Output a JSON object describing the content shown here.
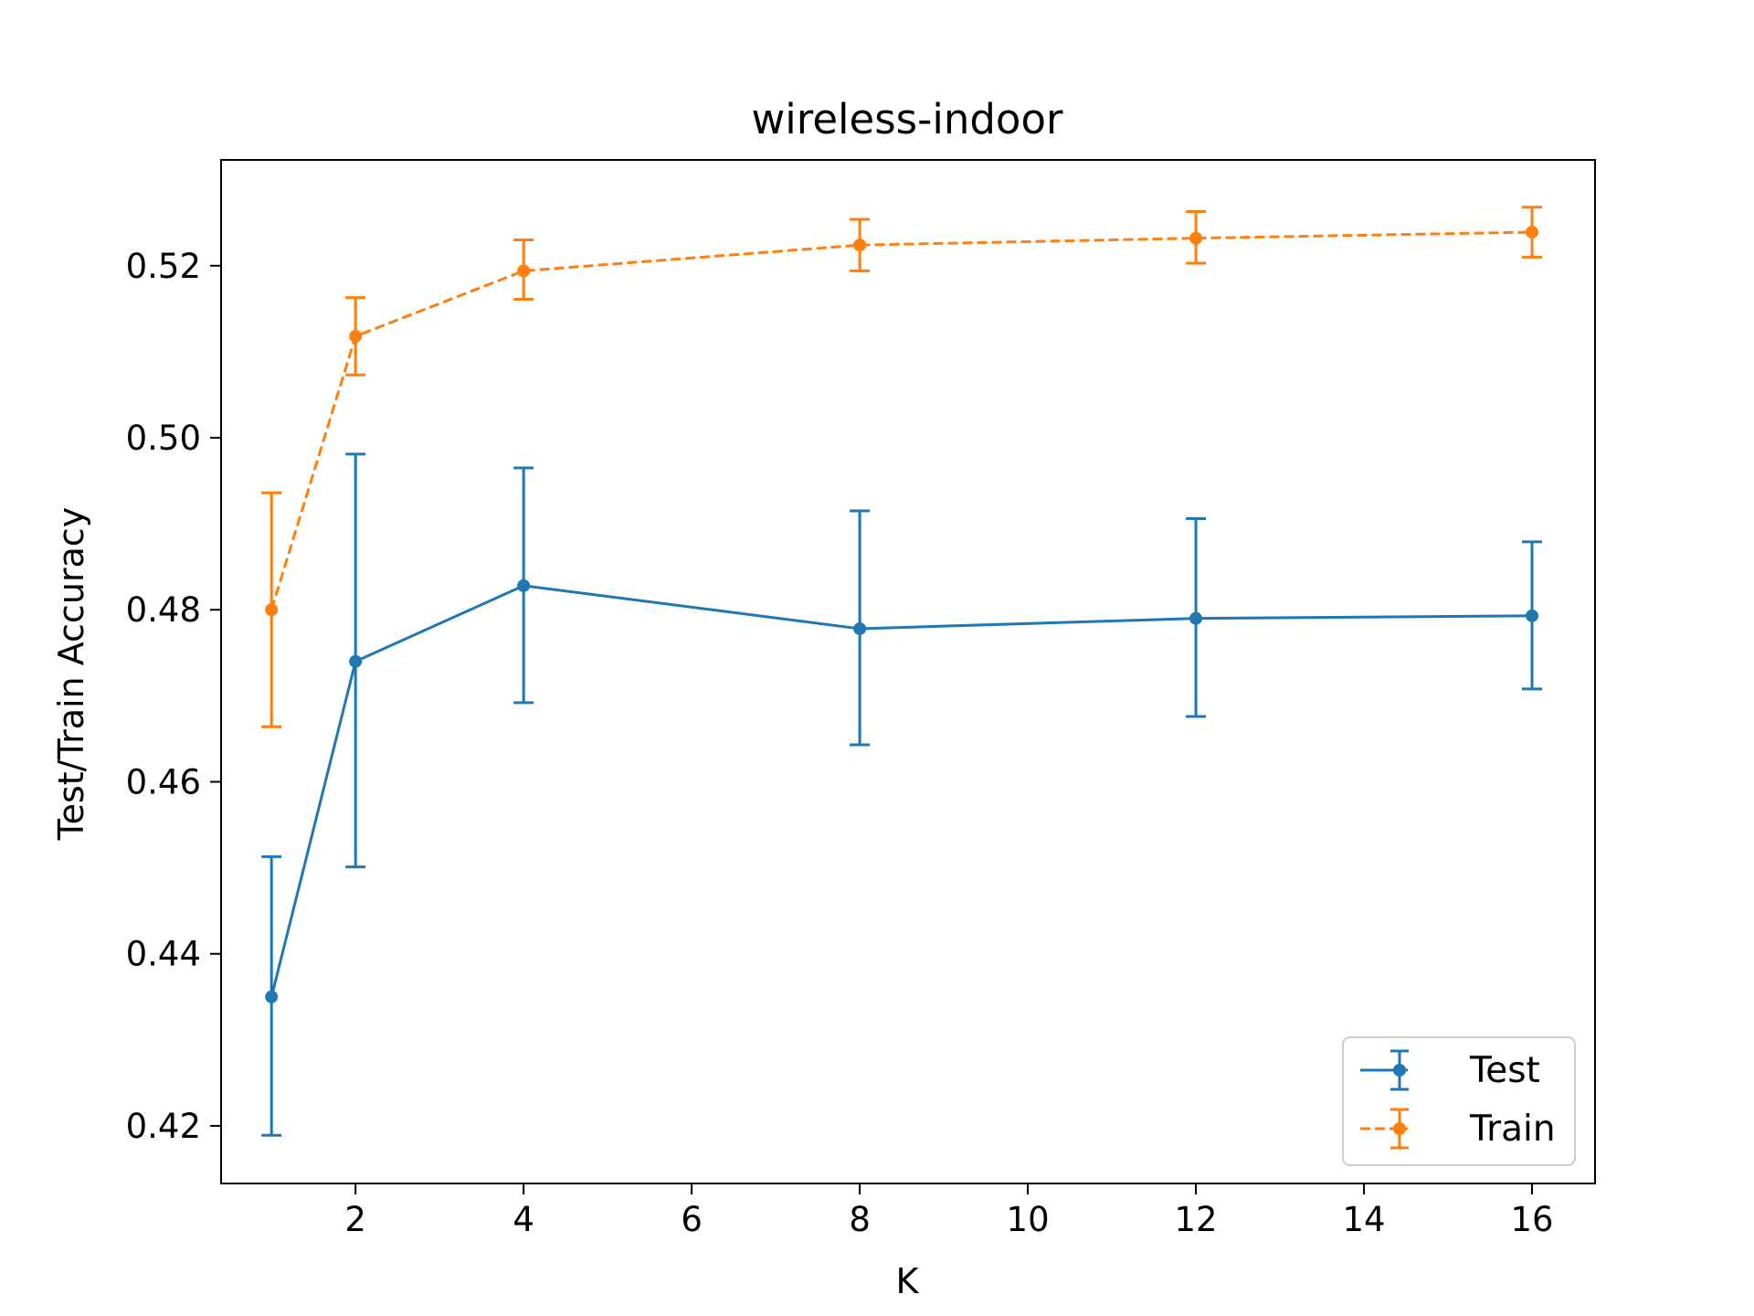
{
  "chart_data": {
    "type": "line",
    "title": "wireless-indoor",
    "xlabel": "K",
    "ylabel": "Test/Train Accuracy",
    "xlim": [
      0.4,
      16.75
    ],
    "ylim": [
      0.4133,
      0.5323
    ],
    "xticks": [
      2,
      4,
      6,
      8,
      10,
      12,
      14,
      16
    ],
    "yticks": [
      0.42,
      0.44,
      0.46,
      0.48,
      0.5,
      0.52
    ],
    "ytick_labels": [
      "0.42",
      "0.44",
      "0.46",
      "0.48",
      "0.50",
      "0.52"
    ],
    "grid": false,
    "legend_position": "lower-right",
    "series": [
      {
        "name": "Test",
        "color": "#1f77b4",
        "linestyle": "solid",
        "x": [
          1,
          2,
          4,
          8,
          12,
          16
        ],
        "y": [
          0.435,
          0.474,
          0.4828,
          0.4778,
          0.479,
          0.4793
        ],
        "err_low": [
          0.4189,
          0.4501,
          0.4692,
          0.4643,
          0.4676,
          0.4708
        ],
        "err_high": [
          0.4513,
          0.4981,
          0.4965,
          0.4915,
          0.4906,
          0.4879
        ]
      },
      {
        "name": "Train",
        "color": "#ff7f0e",
        "linestyle": "dashed",
        "x": [
          1,
          2,
          4,
          8,
          12,
          16
        ],
        "y": [
          0.48,
          0.5118,
          0.5194,
          0.5224,
          0.5232,
          0.5239
        ],
        "err_low": [
          0.4664,
          0.5073,
          0.5161,
          0.5194,
          0.5203,
          0.521
        ],
        "err_high": [
          0.4936,
          0.5163,
          0.523,
          0.5254,
          0.5263,
          0.5268
        ]
      }
    ]
  }
}
